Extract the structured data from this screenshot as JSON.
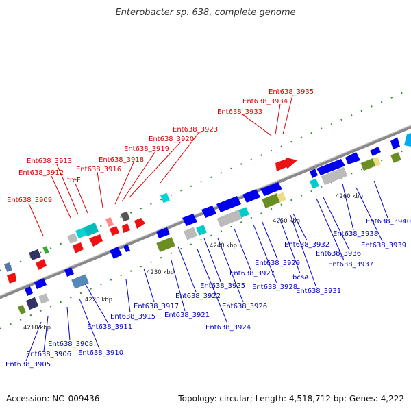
{
  "title": "Enterobacter sp. 638, complete genome",
  "footer": {
    "accession": "Accession: NC_009436",
    "summary": "Topology: circular; Length: 4,518,712 bp; Genes: 4,222"
  },
  "colors": {
    "forward_label": "#dd0000",
    "reverse_label": "#0000cc",
    "backbone": "#888888",
    "tick": "#2e8b2e"
  },
  "scale": [
    "4210 kbp",
    "4220 kbp",
    "4230 kbp",
    "4240 kbp",
    "4250 kbp",
    "4260 kbp"
  ],
  "forward_labels": [
    "Ent638_3935",
    "Ent638_3934",
    "Ent638_3933",
    "Ent638_3923",
    "Ent638_3920",
    "Ent638_3919",
    "Ent638_3918",
    "Ent638_3916",
    "Ent638_3913",
    "Ent638_3912",
    "treF",
    "Ent638_3909"
  ],
  "reverse_labels": [
    "Ent638_3940",
    "Ent638_3938",
    "Ent638_3939",
    "Ent638_3936",
    "Ent638_3937",
    "Ent638_3932",
    "Ent638_3929",
    "Ent638_3927",
    "Ent638_3928",
    "bcsA",
    "Ent638_3931",
    "Ent638_3925",
    "Ent638_3922",
    "Ent638_3926",
    "Ent638_3917",
    "Ent638_3921",
    "Ent638_3924",
    "Ent638_3915",
    "Ent638_3911",
    "Ent638_3908",
    "Ent638_3910",
    "Ent638_3906",
    "Ent638_3905"
  ]
}
